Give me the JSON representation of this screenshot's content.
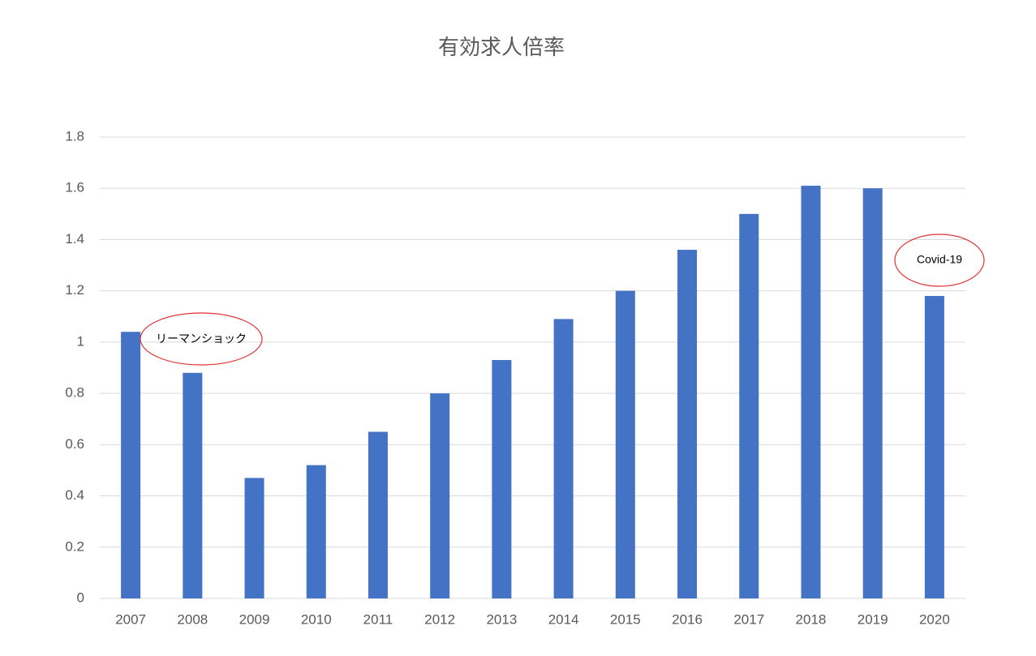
{
  "chart_data": {
    "type": "bar",
    "title": "有効求人倍率",
    "categories": [
      "2007",
      "2008",
      "2009",
      "2010",
      "2011",
      "2012",
      "2013",
      "2014",
      "2015",
      "2016",
      "2017",
      "2018",
      "2019",
      "2020"
    ],
    "values": [
      1.04,
      0.88,
      0.47,
      0.52,
      0.65,
      0.8,
      0.93,
      1.09,
      1.2,
      1.36,
      1.5,
      1.61,
      1.6,
      1.18
    ],
    "color": "#4472c4",
    "ylim": [
      0,
      1.8
    ],
    "yticks": [
      0,
      0.2,
      0.4,
      0.6,
      0.8,
      1,
      1.2,
      1.4,
      1.6,
      1.8
    ],
    "grid": true,
    "annotations": [
      "リーマンショック",
      "Covid-19"
    ]
  }
}
